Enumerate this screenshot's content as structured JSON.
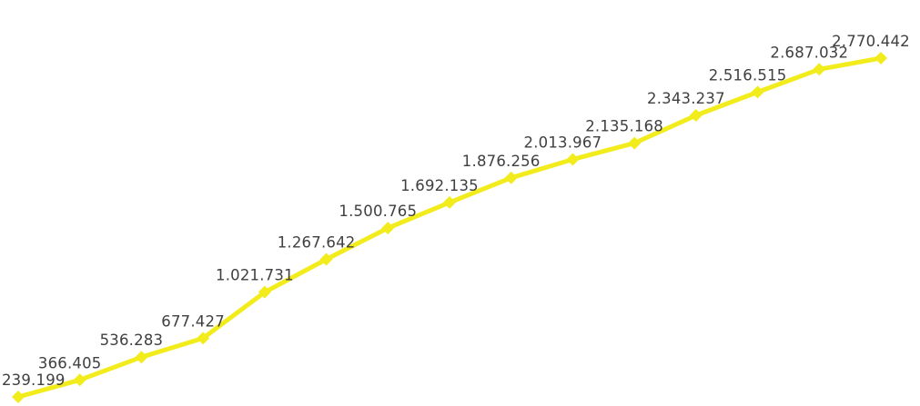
{
  "chart_data": {
    "type": "line",
    "title": "",
    "xlabel": "",
    "ylabel": "",
    "grid": false,
    "legend": "none",
    "color": "#F2EC1D",
    "marker": "diamond",
    "series": [
      {
        "values": [
          239199,
          366405,
          536283,
          677427,
          1021731,
          1267642,
          1500765,
          1692135,
          1876256,
          2013967,
          2135168,
          2343237,
          2516515,
          2687032,
          2770442
        ],
        "labels": [
          "239.199",
          "366.405",
          "536.283",
          "677.427",
          "1.021.731",
          "1.267.642",
          "1.500.765",
          "1.692.135",
          "1.876.256",
          "2.013.967",
          "2.135.168",
          "2.343.237",
          "2.516.515",
          "2.687.032",
          "2.770.442"
        ]
      }
    ]
  }
}
